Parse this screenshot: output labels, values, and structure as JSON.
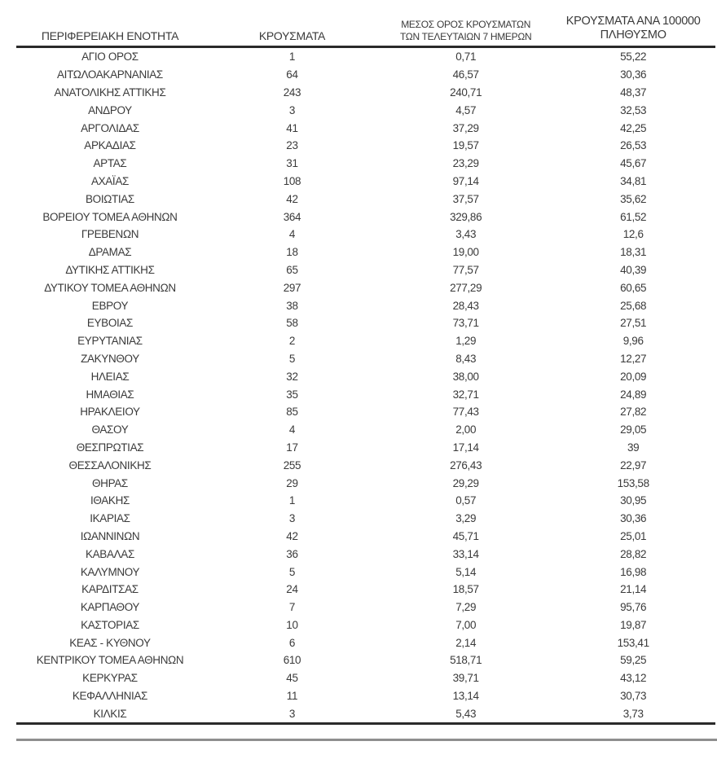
{
  "page": {
    "background_color": "#ffffff",
    "text_color": "#3a3a3a",
    "rule_color": "#8f8f8f",
    "border_color": "#2a2a2a"
  },
  "table": {
    "headers": [
      {
        "label": "ΠΕΡΙΦΕΡΕΙΑΚΗ ΕΝΟΤΗΤΑ"
      },
      {
        "label": "ΚΡΟΥΣΜΑΤΑ"
      },
      {
        "label": "ΜΕΣΟΣ ΟΡΟΣ ΚΡΟΥΣΜΑΤΩΝ\nΤΩΝ ΤΕΛΕΥΤΑΙΩΝ 7 ΗΜΕΡΩΝ"
      },
      {
        "label": "ΚΡΟΥΣΜΑΤΑ ΑΝΑ 100000\nΠΛΗΘΥΣΜΟ"
      }
    ],
    "rows": [
      [
        "ΑΓΙΟ ΟΡΟΣ",
        "1",
        "0,71",
        "55,22"
      ],
      [
        "ΑΙΤΩΛΟΑΚΑΡΝΑΝΙΑΣ",
        "64",
        "46,57",
        "30,36"
      ],
      [
        "ΑΝΑΤΟΛΙΚΗΣ ΑΤΤΙΚΗΣ",
        "243",
        "240,71",
        "48,37"
      ],
      [
        "ΑΝΔΡΟΥ",
        "3",
        "4,57",
        "32,53"
      ],
      [
        "ΑΡΓΟΛΙΔΑΣ",
        "41",
        "37,29",
        "42,25"
      ],
      [
        "ΑΡΚΑΔΙΑΣ",
        "23",
        "19,57",
        "26,53"
      ],
      [
        "ΑΡΤΑΣ",
        "31",
        "23,29",
        "45,67"
      ],
      [
        "ΑΧΑΪΑΣ",
        "108",
        "97,14",
        "34,81"
      ],
      [
        "ΒΟΙΩΤΙΑΣ",
        "42",
        "37,57",
        "35,62"
      ],
      [
        "ΒΟΡΕΙΟΥ ΤΟΜΕΑ ΑΘΗΝΩΝ",
        "364",
        "329,86",
        "61,52"
      ],
      [
        "ΓΡΕΒΕΝΩΝ",
        "4",
        "3,43",
        "12,6"
      ],
      [
        "ΔΡΑΜΑΣ",
        "18",
        "19,00",
        "18,31"
      ],
      [
        "ΔΥΤΙΚΗΣ ΑΤΤΙΚΗΣ",
        "65",
        "77,57",
        "40,39"
      ],
      [
        "ΔΥΤΙΚΟΥ ΤΟΜΕΑ ΑΘΗΝΩΝ",
        "297",
        "277,29",
        "60,65"
      ],
      [
        "ΕΒΡΟΥ",
        "38",
        "28,43",
        "25,68"
      ],
      [
        "ΕΥΒΟΙΑΣ",
        "58",
        "73,71",
        "27,51"
      ],
      [
        "ΕΥΡΥΤΑΝΙΑΣ",
        "2",
        "1,29",
        "9,96"
      ],
      [
        "ΖΑΚΥΝΘΟΥ",
        "5",
        "8,43",
        "12,27"
      ],
      [
        "ΗΛΕΙΑΣ",
        "32",
        "38,00",
        "20,09"
      ],
      [
        "ΗΜΑΘΙΑΣ",
        "35",
        "32,71",
        "24,89"
      ],
      [
        "ΗΡΑΚΛΕΙΟΥ",
        "85",
        "77,43",
        "27,82"
      ],
      [
        "ΘΑΣΟΥ",
        "4",
        "2,00",
        "29,05"
      ],
      [
        "ΘΕΣΠΡΩΤΙΑΣ",
        "17",
        "17,14",
        "39"
      ],
      [
        "ΘΕΣΣΑΛΟΝΙΚΗΣ",
        "255",
        "276,43",
        "22,97"
      ],
      [
        "ΘΗΡΑΣ",
        "29",
        "29,29",
        "153,58"
      ],
      [
        "ΙΘΑΚΗΣ",
        "1",
        "0,57",
        "30,95"
      ],
      [
        "ΙΚΑΡΙΑΣ",
        "3",
        "3,29",
        "30,36"
      ],
      [
        "ΙΩΑΝΝΙΝΩΝ",
        "42",
        "45,71",
        "25,01"
      ],
      [
        "ΚΑΒΑΛΑΣ",
        "36",
        "33,14",
        "28,82"
      ],
      [
        "ΚΑΛΥΜΝΟΥ",
        "5",
        "5,14",
        "16,98"
      ],
      [
        "ΚΑΡΔΙΤΣΑΣ",
        "24",
        "18,57",
        "21,14"
      ],
      [
        "ΚΑΡΠΑΘΟΥ",
        "7",
        "7,29",
        "95,76"
      ],
      [
        "ΚΑΣΤΟΡΙΑΣ",
        "10",
        "7,00",
        "19,87"
      ],
      [
        "ΚΕΑΣ - ΚΥΘΝΟΥ",
        "6",
        "2,14",
        "153,41"
      ],
      [
        "ΚΕΝΤΡΙΚΟΥ ΤΟΜΕΑ ΑΘΗΝΩΝ",
        "610",
        "518,71",
        "59,25"
      ],
      [
        "ΚΕΡΚΥΡΑΣ",
        "45",
        "39,71",
        "43,12"
      ],
      [
        "ΚΕΦΑΛΛΗΝΙΑΣ",
        "11",
        "13,14",
        "30,73"
      ],
      [
        "ΚΙΛΚΙΣ",
        "3",
        "5,43",
        "3,73"
      ]
    ],
    "cell_names": [
      "region-cell",
      "cases-cell",
      "avg-7day-cell",
      "per-100k-cell"
    ]
  }
}
